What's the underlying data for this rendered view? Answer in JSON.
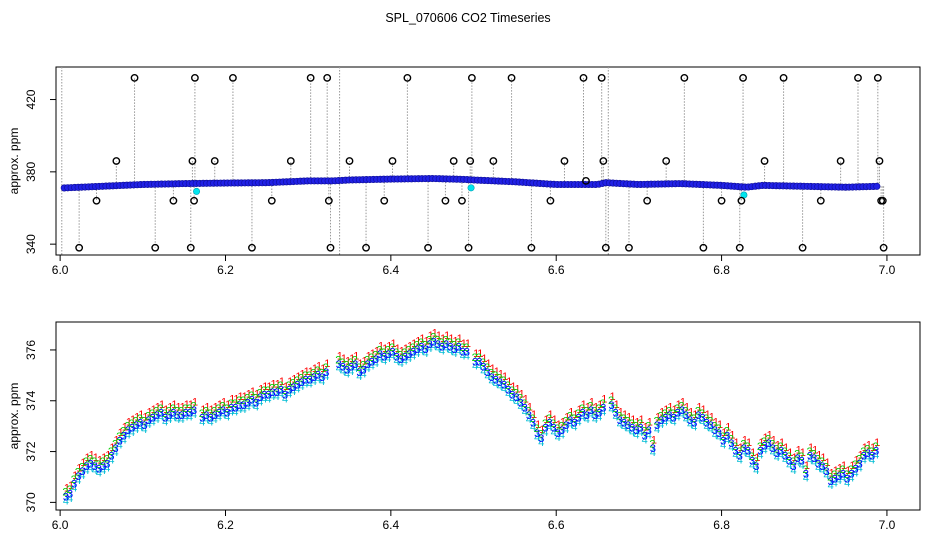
{
  "title": "SPL_070606  CO2 Timeseries",
  "chart_data": [
    {
      "type": "scatter",
      "name": "raw-timeseries",
      "xlabel": "",
      "ylabel": "approx. ppm",
      "xlim": [
        5.995,
        7.04
      ],
      "ylim": [
        334,
        438
      ],
      "xticks": [
        6.0,
        6.2,
        6.4,
        6.6,
        6.8,
        7.0
      ],
      "xtick_labels": [
        "6.0",
        "6.2",
        "6.4",
        "6.6",
        "6.8",
        "7.0"
      ],
      "yticks": [
        340,
        380,
        420
      ],
      "ytick_labels": [
        "340",
        "380",
        "420"
      ],
      "vertical_lines": [
        6.002,
        6.338,
        6.663
      ],
      "baseline": [
        [
          6.0,
          371.0
        ],
        [
          6.05,
          372.0
        ],
        [
          6.1,
          373.0
        ],
        [
          6.15,
          373.5
        ],
        [
          6.2,
          373.8
        ],
        [
          6.25,
          374.0
        ],
        [
          6.3,
          375.0
        ],
        [
          6.33,
          375.0
        ],
        [
          6.35,
          375.5
        ],
        [
          6.4,
          376.0
        ],
        [
          6.45,
          376.3
        ],
        [
          6.49,
          375.8
        ],
        [
          6.5,
          375.5
        ],
        [
          6.55,
          374.5
        ],
        [
          6.6,
          373.0
        ],
        [
          6.65,
          373.0
        ],
        [
          6.66,
          374.0
        ],
        [
          6.7,
          373.0
        ],
        [
          6.75,
          373.5
        ],
        [
          6.8,
          372.5
        ],
        [
          6.83,
          371.5
        ],
        [
          6.85,
          372.5
        ],
        [
          6.9,
          372.0
        ],
        [
          6.95,
          371.5
        ],
        [
          6.99,
          372.0
        ]
      ],
      "outliers": [
        [
          6.023,
          338
        ],
        [
          6.044,
          364
        ],
        [
          6.068,
          386
        ],
        [
          6.09,
          432
        ],
        [
          6.115,
          338
        ],
        [
          6.137,
          364
        ],
        [
          6.158,
          338
        ],
        [
          6.16,
          386
        ],
        [
          6.162,
          364
        ],
        [
          6.163,
          432
        ],
        [
          6.187,
          386
        ],
        [
          6.209,
          432
        ],
        [
          6.232,
          338
        ],
        [
          6.256,
          364
        ],
        [
          6.279,
          386
        ],
        [
          6.303,
          432
        ],
        [
          6.323,
          432
        ],
        [
          6.325,
          364
        ],
        [
          6.327,
          338
        ],
        [
          6.35,
          386
        ],
        [
          6.37,
          338
        ],
        [
          6.392,
          364
        ],
        [
          6.402,
          386
        ],
        [
          6.42,
          432
        ],
        [
          6.445,
          338
        ],
        [
          6.466,
          364
        ],
        [
          6.476,
          386
        ],
        [
          6.486,
          364
        ],
        [
          6.494,
          338
        ],
        [
          6.496,
          386
        ],
        [
          6.498,
          432
        ],
        [
          6.524,
          386
        ],
        [
          6.546,
          432
        ],
        [
          6.57,
          338
        ],
        [
          6.593,
          364
        ],
        [
          6.61,
          386
        ],
        [
          6.633,
          432
        ],
        [
          6.636,
          375
        ],
        [
          6.655,
          432
        ],
        [
          6.657,
          386
        ],
        [
          6.66,
          338
        ],
        [
          6.688,
          338
        ],
        [
          6.71,
          364
        ],
        [
          6.733,
          386
        ],
        [
          6.755,
          432
        ],
        [
          6.778,
          338
        ],
        [
          6.8,
          364
        ],
        [
          6.822,
          338
        ],
        [
          6.824,
          364
        ],
        [
          6.826,
          432
        ],
        [
          6.852,
          386
        ],
        [
          6.875,
          432
        ],
        [
          6.898,
          338
        ],
        [
          6.92,
          364
        ],
        [
          6.944,
          386
        ],
        [
          6.965,
          432
        ],
        [
          6.989,
          432
        ],
        [
          6.991,
          386
        ],
        [
          6.993,
          364
        ],
        [
          6.995,
          364
        ],
        [
          6.996,
          338
        ]
      ]
    },
    {
      "type": "scatter",
      "name": "filtered-timeseries",
      "xlabel": "",
      "ylabel": "approx. ppm",
      "xlim": [
        5.995,
        7.04
      ],
      "ylim": [
        369.7,
        377.1
      ],
      "xticks": [
        6.0,
        6.2,
        6.4,
        6.6,
        6.8,
        7.0
      ],
      "xtick_labels": [
        "6.0",
        "6.2",
        "6.4",
        "6.6",
        "6.8",
        "7.0"
      ],
      "yticks": [
        370,
        372,
        374,
        376
      ],
      "ytick_labels": [
        "370",
        "372",
        "374",
        "376"
      ],
      "series": [
        {
          "name": "1",
          "symbol": "1",
          "offset": 0.28
        },
        {
          "name": "2",
          "symbol": "2",
          "offset": 0.12
        },
        {
          "name": "3",
          "symbol": "3",
          "offset": -0.06
        },
        {
          "name": "4",
          "symbol": "4",
          "offset": -0.22
        }
      ],
      "x": [
        6.007,
        6.012,
        6.017,
        6.022,
        6.027,
        6.032,
        6.037,
        6.042,
        6.047,
        6.052,
        6.057,
        6.062,
        6.067,
        6.072,
        6.077,
        6.082,
        6.087,
        6.092,
        6.097,
        6.102,
        6.107,
        6.112,
        6.117,
        6.122,
        6.127,
        6.132,
        6.137,
        6.142,
        6.147,
        6.152,
        6.157,
        6.162,
        6.172,
        6.177,
        6.182,
        6.187,
        6.192,
        6.197,
        6.202,
        6.207,
        6.212,
        6.217,
        6.222,
        6.227,
        6.232,
        6.237,
        6.242,
        6.247,
        6.252,
        6.257,
        6.262,
        6.267,
        6.272,
        6.277,
        6.282,
        6.287,
        6.292,
        6.297,
        6.302,
        6.307,
        6.312,
        6.317,
        6.322,
        6.337,
        6.342,
        6.347,
        6.352,
        6.357,
        6.362,
        6.367,
        6.372,
        6.377,
        6.382,
        6.387,
        6.392,
        6.397,
        6.402,
        6.407,
        6.412,
        6.417,
        6.422,
        6.427,
        6.432,
        6.437,
        6.442,
        6.447,
        6.452,
        6.457,
        6.462,
        6.467,
        6.472,
        6.477,
        6.482,
        6.487,
        6.492,
        6.502,
        6.507,
        6.512,
        6.517,
        6.522,
        6.527,
        6.532,
        6.537,
        6.542,
        6.547,
        6.552,
        6.557,
        6.562,
        6.567,
        6.572,
        6.577,
        6.582,
        6.587,
        6.592,
        6.597,
        6.602,
        6.607,
        6.612,
        6.617,
        6.622,
        6.627,
        6.632,
        6.637,
        6.642,
        6.647,
        6.652,
        6.657,
        6.667,
        6.672,
        6.677,
        6.682,
        6.687,
        6.692,
        6.697,
        6.702,
        6.707,
        6.712,
        6.717,
        6.722,
        6.727,
        6.732,
        6.737,
        6.742,
        6.747,
        6.752,
        6.757,
        6.762,
        6.767,
        6.772,
        6.777,
        6.782,
        6.787,
        6.792,
        6.797,
        6.802,
        6.807,
        6.812,
        6.817,
        6.822,
        6.827,
        6.832,
        6.837,
        6.842,
        6.847,
        6.852,
        6.857,
        6.862,
        6.867,
        6.872,
        6.877,
        6.882,
        6.887,
        6.892,
        6.897,
        6.902,
        6.907,
        6.912,
        6.917,
        6.922,
        6.927,
        6.932,
        6.937,
        6.942,
        6.947,
        6.952,
        6.957,
        6.962,
        6.967,
        6.972,
        6.977,
        6.982,
        6.987
      ],
      "y": [
        370.3,
        370.4,
        370.8,
        371.1,
        371.3,
        371.5,
        371.6,
        371.5,
        371.4,
        371.5,
        371.6,
        371.9,
        372.2,
        372.5,
        372.7,
        372.9,
        373.0,
        373.1,
        373.2,
        373.1,
        373.3,
        373.4,
        373.5,
        373.6,
        373.4,
        373.5,
        373.6,
        373.5,
        373.5,
        373.6,
        373.6,
        373.7,
        373.4,
        373.5,
        373.4,
        373.5,
        373.6,
        373.7,
        373.6,
        373.8,
        373.8,
        373.9,
        373.9,
        374.0,
        374.1,
        374.0,
        374.2,
        374.3,
        374.3,
        374.4,
        374.4,
        374.5,
        374.3,
        374.5,
        374.6,
        374.7,
        374.8,
        374.9,
        374.9,
        375.0,
        375.1,
        375.0,
        375.2,
        375.5,
        375.4,
        375.3,
        375.4,
        375.5,
        375.2,
        375.3,
        375.5,
        375.6,
        375.7,
        375.9,
        375.8,
        375.9,
        376.0,
        375.8,
        375.7,
        375.8,
        375.9,
        376.0,
        376.1,
        376.2,
        376.1,
        376.3,
        376.4,
        376.3,
        376.2,
        376.3,
        376.2,
        376.1,
        376.2,
        376.0,
        376.0,
        375.6,
        375.6,
        375.4,
        375.2,
        375.0,
        374.9,
        374.8,
        374.7,
        374.5,
        374.3,
        374.2,
        374.0,
        373.8,
        373.5,
        373.2,
        372.8,
        372.6,
        373.0,
        373.2,
        373.0,
        372.8,
        372.9,
        373.1,
        373.3,
        373.2,
        373.4,
        373.6,
        373.5,
        373.7,
        373.5,
        373.6,
        373.8,
        373.9,
        373.6,
        373.3,
        373.2,
        373.1,
        373.0,
        372.9,
        373.0,
        372.7,
        372.9,
        372.2,
        373.1,
        373.3,
        373.4,
        373.5,
        373.4,
        373.6,
        373.7,
        373.5,
        373.3,
        373.2,
        373.5,
        373.4,
        373.2,
        373.1,
        372.9,
        372.8,
        372.5,
        372.7,
        372.4,
        372.1,
        371.9,
        372.2,
        372.1,
        371.7,
        371.5,
        372.1,
        372.3,
        372.4,
        372.2,
        372.0,
        372.1,
        371.9,
        371.7,
        371.5,
        371.8,
        371.7,
        371.2,
        371.9,
        371.8,
        371.6,
        371.5,
        371.3,
        370.9,
        371.0,
        371.1,
        371.2,
        371.0,
        371.2,
        371.4,
        371.6,
        371.9,
        372.0,
        371.9,
        372.1
      ]
    }
  ],
  "colors": {
    "series1": "#ff0000",
    "series2": "#00cd00",
    "series3": "#0000ff",
    "series4": "#00bcd4",
    "outlier": "#000000",
    "dotted": "#999999",
    "raw_fill": "#2121e6",
    "raw_highlight": "#00e5ee",
    "axis": "#000000"
  }
}
